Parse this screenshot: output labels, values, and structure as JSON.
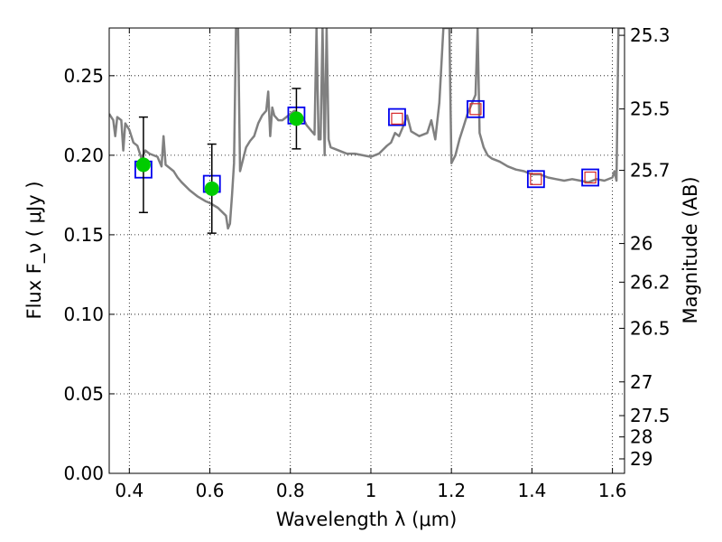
{
  "chart_data": {
    "type": "line",
    "xlabel": "Wavelength  λ (μm)",
    "ylabel": "Flux  F_ν  ( μJy )",
    "y2label": "Magnitude (AB)",
    "xlim": [
      0.35,
      1.63
    ],
    "ylim": [
      0.0,
      0.28
    ],
    "grid": true,
    "x_ticks": [
      0.4,
      0.6,
      0.8,
      1.0,
      1.2,
      1.4,
      1.6
    ],
    "x_tick_labels": [
      "0.4",
      "0.6",
      "0.8",
      "1",
      "1.2",
      "1.4",
      "1.6"
    ],
    "y_ticks": [
      0.0,
      0.05,
      0.1,
      0.15,
      0.2,
      0.25
    ],
    "y_tick_labels": [
      "0.00",
      "0.05",
      "0.10",
      "0.15",
      "0.20",
      "0.25"
    ],
    "mag_ticks": [
      {
        "flux": 0.2754,
        "label": "25.3"
      },
      {
        "flux": 0.2291,
        "label": "25.5"
      },
      {
        "flux": 0.1905,
        "label": "25.7"
      },
      {
        "flux": 0.1445,
        "label": "26"
      },
      {
        "flux": 0.1202,
        "label": "26.2"
      },
      {
        "flux": 0.0912,
        "label": "26.5"
      },
      {
        "flux": 0.0575,
        "label": "27"
      },
      {
        "flux": 0.0363,
        "label": "27.5"
      },
      {
        "flux": 0.0229,
        "label": "28"
      },
      {
        "flux": 0.0091,
        "label": "29"
      }
    ],
    "series": [
      {
        "kind": "model_spectrum",
        "color": "#808080",
        "x": [
          0.35,
          0.36,
          0.365,
          0.37,
          0.38,
          0.385,
          0.39,
          0.4,
          0.41,
          0.42,
          0.43,
          0.44,
          0.45,
          0.46,
          0.47,
          0.48,
          0.485,
          0.49,
          0.5,
          0.51,
          0.52,
          0.53,
          0.55,
          0.57,
          0.59,
          0.6,
          0.62,
          0.64,
          0.645,
          0.65,
          0.655,
          0.66,
          0.665,
          0.67,
          0.675,
          0.68,
          0.69,
          0.7,
          0.71,
          0.72,
          0.73,
          0.74,
          0.745,
          0.75,
          0.755,
          0.76,
          0.77,
          0.78,
          0.79,
          0.8,
          0.81,
          0.82,
          0.83,
          0.84,
          0.85,
          0.86,
          0.865,
          0.87,
          0.875,
          0.88,
          0.885,
          0.89,
          0.895,
          0.9,
          0.92,
          0.94,
          0.96,
          0.98,
          1.0,
          1.02,
          1.04,
          1.05,
          1.06,
          1.07,
          1.08,
          1.09,
          1.1,
          1.12,
          1.14,
          1.15,
          1.16,
          1.17,
          1.18,
          1.185,
          1.19,
          1.195,
          1.2,
          1.21,
          1.22,
          1.23,
          1.24,
          1.25,
          1.26,
          1.265,
          1.27,
          1.28,
          1.29,
          1.3,
          1.32,
          1.34,
          1.36,
          1.38,
          1.4,
          1.42,
          1.44,
          1.46,
          1.48,
          1.5,
          1.52,
          1.54,
          1.56,
          1.58,
          1.6,
          1.605,
          1.61,
          1.615,
          1.62,
          1.625,
          1.63
        ],
        "y": [
          0.226,
          0.222,
          0.212,
          0.224,
          0.222,
          0.203,
          0.22,
          0.216,
          0.208,
          0.206,
          0.198,
          0.203,
          0.201,
          0.2,
          0.199,
          0.193,
          0.212,
          0.194,
          0.192,
          0.19,
          0.186,
          0.183,
          0.178,
          0.174,
          0.171,
          0.17,
          0.167,
          0.162,
          0.154,
          0.157,
          0.175,
          0.195,
          0.28,
          0.28,
          0.19,
          0.195,
          0.205,
          0.209,
          0.212,
          0.22,
          0.225,
          0.228,
          0.24,
          0.212,
          0.23,
          0.225,
          0.222,
          0.222,
          0.224,
          0.226,
          0.228,
          0.226,
          0.224,
          0.219,
          0.216,
          0.213,
          0.28,
          0.21,
          0.21,
          0.28,
          0.2,
          0.28,
          0.21,
          0.205,
          0.203,
          0.201,
          0.201,
          0.2,
          0.199,
          0.201,
          0.206,
          0.208,
          0.214,
          0.212,
          0.218,
          0.225,
          0.215,
          0.212,
          0.214,
          0.222,
          0.21,
          0.233,
          0.28,
          0.28,
          0.28,
          0.28,
          0.195,
          0.2,
          0.21,
          0.218,
          0.226,
          0.232,
          0.238,
          0.28,
          0.214,
          0.205,
          0.2,
          0.198,
          0.196,
          0.193,
          0.191,
          0.19,
          0.188,
          0.188,
          0.186,
          0.185,
          0.184,
          0.185,
          0.184,
          0.183,
          0.185,
          0.184,
          0.186,
          0.19,
          0.184,
          0.28,
          0.28,
          0.28,
          0.28
        ]
      },
      {
        "kind": "model_photometry",
        "marker": "square",
        "color": "#0000ee",
        "x": [
          0.435,
          0.605,
          0.815,
          1.065,
          1.26,
          1.41,
          1.545
        ],
        "y": [
          0.191,
          0.182,
          0.225,
          0.224,
          0.229,
          0.185,
          0.186
        ]
      },
      {
        "kind": "observed_photometry_filled",
        "marker": "circle",
        "color": "#00cc00",
        "x": [
          0.435,
          0.605,
          0.815
        ],
        "y": [
          0.194,
          0.179,
          0.223
        ],
        "yerr": [
          0.03,
          0.028,
          0.019
        ]
      },
      {
        "kind": "observed_photometry_open",
        "marker": "square",
        "color": "#d62728",
        "x": [
          1.065,
          1.26,
          1.41,
          1.545
        ],
        "y": [
          0.223,
          0.229,
          0.185,
          0.186
        ]
      }
    ]
  }
}
